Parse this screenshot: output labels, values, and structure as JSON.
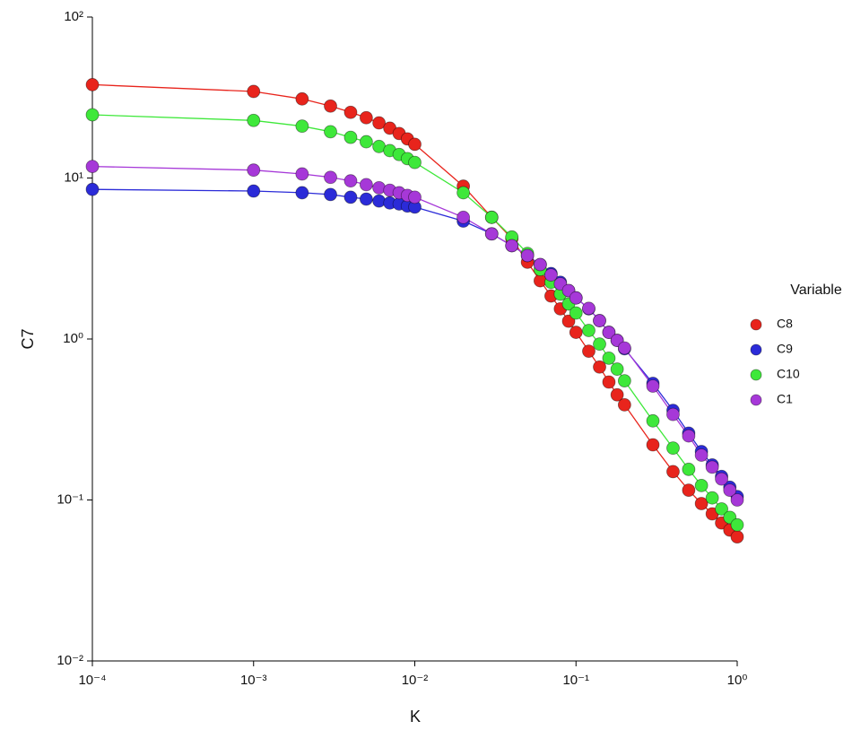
{
  "chart_data": {
    "type": "line",
    "xlabel": "K",
    "ylabel": "C7",
    "x": [
      0.0001,
      0.001,
      0.002,
      0.003,
      0.004,
      0.005,
      0.006,
      0.007,
      0.008,
      0.009,
      0.01,
      0.02,
      0.03,
      0.04,
      0.05,
      0.06,
      0.07,
      0.08,
      0.09,
      0.1,
      0.12,
      0.14,
      0.16,
      0.18,
      0.2,
      0.3,
      0.4,
      0.5,
      0.6,
      0.7,
      0.8,
      0.9,
      1
    ],
    "series": [
      {
        "name": "C8",
        "color": "#e8241c",
        "values": [
          38,
          34.5,
          31,
          28,
          25.6,
          23.7,
          22,
          20.4,
          18.9,
          17.5,
          16.2,
          8.9,
          5.7,
          4.2,
          3.0,
          2.3,
          1.85,
          1.54,
          1.29,
          1.1,
          0.84,
          0.67,
          0.54,
          0.45,
          0.39,
          0.22,
          0.15,
          0.115,
          0.095,
          0.082,
          0.072,
          0.065,
          0.059
        ]
      },
      {
        "name": "C9",
        "color": "#2b2bd8",
        "values": [
          8.5,
          8.3,
          8.1,
          7.9,
          7.6,
          7.4,
          7.2,
          7.0,
          6.9,
          6.7,
          6.6,
          5.4,
          4.5,
          3.8,
          3.3,
          2.9,
          2.55,
          2.25,
          2.0,
          1.8,
          1.54,
          1.3,
          1.1,
          0.98,
          0.87,
          0.53,
          0.36,
          0.26,
          0.2,
          0.165,
          0.14,
          0.12,
          0.105
        ]
      },
      {
        "name": "C10",
        "color": "#3ee83a",
        "values": [
          24.7,
          22.8,
          21,
          19.4,
          17.9,
          16.8,
          15.7,
          14.8,
          14,
          13.2,
          12.5,
          8.1,
          5.7,
          4.3,
          3.4,
          2.7,
          2.25,
          1.9,
          1.65,
          1.45,
          1.13,
          0.93,
          0.76,
          0.65,
          0.55,
          0.31,
          0.21,
          0.155,
          0.123,
          0.103,
          0.088,
          0.078,
          0.07
        ]
      },
      {
        "name": "C1",
        "color": "#a638d8",
        "values": [
          11.8,
          11.2,
          10.6,
          10.1,
          9.6,
          9.1,
          8.7,
          8.4,
          8.1,
          7.8,
          7.6,
          5.7,
          4.5,
          3.8,
          3.3,
          2.9,
          2.5,
          2.2,
          2.0,
          1.8,
          1.55,
          1.3,
          1.1,
          0.98,
          0.88,
          0.51,
          0.34,
          0.25,
          0.19,
          0.16,
          0.135,
          0.115,
          0.1
        ]
      }
    ],
    "xscale": "log",
    "yscale": "log",
    "xlim": [
      0.0001,
      1
    ],
    "ylim": [
      0.01,
      100
    ],
    "xticks": [
      {
        "value": 0.0001,
        "label": "10⁻⁴"
      },
      {
        "value": 0.001,
        "label": "10⁻³"
      },
      {
        "value": 0.01,
        "label": "10⁻²"
      },
      {
        "value": 0.1,
        "label": "10⁻¹"
      },
      {
        "value": 1,
        "label": "10⁰"
      }
    ],
    "yticks": [
      {
        "value": 0.01,
        "label": "10⁻²"
      },
      {
        "value": 0.1,
        "label": "10⁻¹"
      },
      {
        "value": 1,
        "label": "10⁰"
      },
      {
        "value": 10,
        "label": "10¹"
      },
      {
        "value": 100,
        "label": "10²"
      }
    ],
    "legend_title": "Variable",
    "legend": "right"
  }
}
